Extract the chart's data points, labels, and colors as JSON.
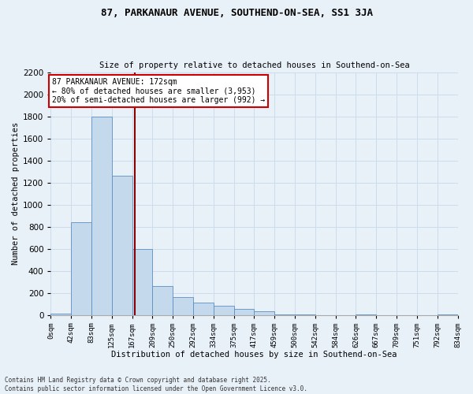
{
  "title1": "87, PARKANAUR AVENUE, SOUTHEND-ON-SEA, SS1 3JA",
  "title2": "Size of property relative to detached houses in Southend-on-Sea",
  "xlabel": "Distribution of detached houses by size in Southend-on-Sea",
  "ylabel": "Number of detached properties",
  "annotation_line1": "87 PARKANAUR AVENUE: 172sqm",
  "annotation_line2": "← 80% of detached houses are smaller (3,953)",
  "annotation_line3": "20% of semi-detached houses are larger (992) →",
  "footer1": "Contains HM Land Registry data © Crown copyright and database right 2025.",
  "footer2": "Contains public sector information licensed under the Open Government Licence v3.0.",
  "property_value": 172,
  "bin_size": 41.5,
  "bar_values": [
    10,
    840,
    1800,
    1260,
    600,
    260,
    160,
    110,
    80,
    55,
    30,
    5,
    3,
    0,
    0,
    5,
    0,
    0,
    0,
    3
  ],
  "tick_labels": [
    "0sqm",
    "42sqm",
    "83sqm",
    "125sqm",
    "167sqm",
    "209sqm",
    "250sqm",
    "292sqm",
    "334sqm",
    "375sqm",
    "417sqm",
    "459sqm",
    "500sqm",
    "542sqm",
    "584sqm",
    "626sqm",
    "667sqm",
    "709sqm",
    "751sqm",
    "792sqm",
    "834sqm"
  ],
  "ylim": [
    0,
    2200
  ],
  "yticks": [
    0,
    200,
    400,
    600,
    800,
    1000,
    1200,
    1400,
    1600,
    1800,
    2000,
    2200
  ],
  "bar_color": "#c5d9ed",
  "bar_edge_color": "#5b8ec4",
  "grid_color": "#cddcec",
  "bg_color": "#e8f0f8",
  "vline_color": "#8b0000",
  "annotation_box_color": "#ffffff",
  "annotation_box_edge": "#cc0000"
}
